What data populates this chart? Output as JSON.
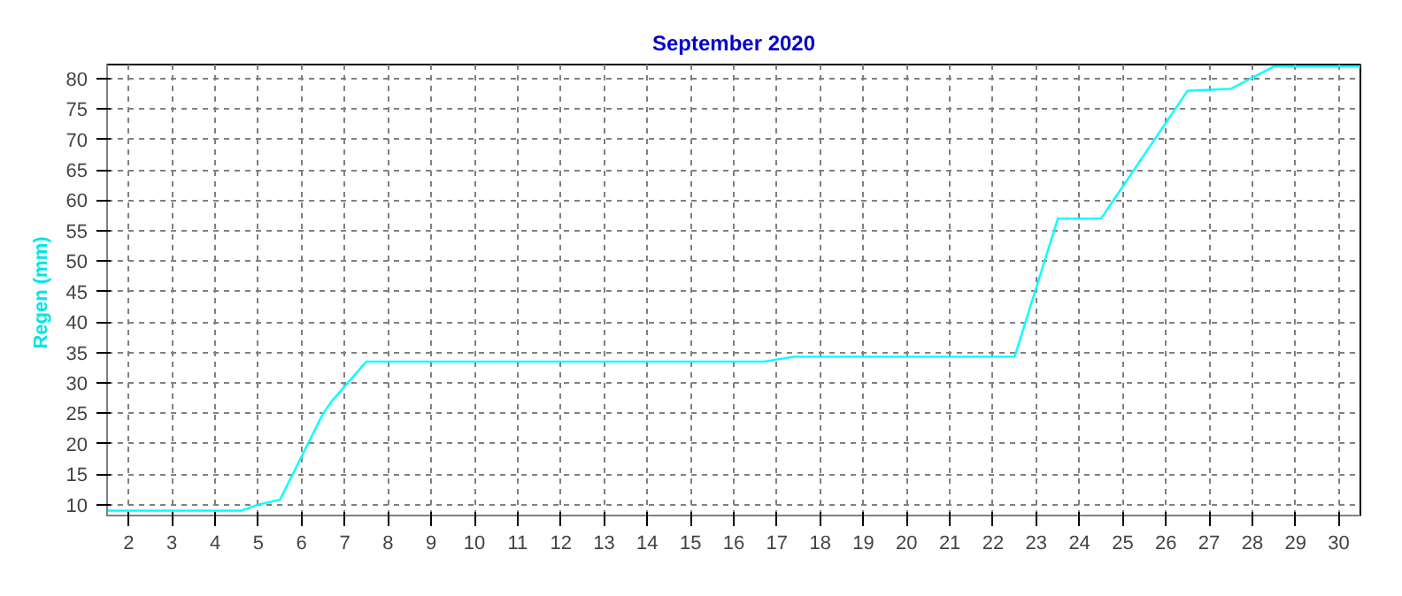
{
  "chart_data": {
    "type": "line",
    "title": "September 2020",
    "ylabel": "Regen  (mm)",
    "x": [
      1.5,
      4.6,
      5.0,
      5.5,
      6.5,
      6.7,
      7.5,
      16.7,
      17.4,
      22.5,
      23.5,
      24.5,
      26.5,
      27.5,
      28.5,
      30.5
    ],
    "series": [
      {
        "color": "#00ffff",
        "values": [
          9,
          9,
          10,
          10.8,
          25,
          27,
          33.5,
          33.5,
          34.3,
          34.3,
          57,
          57,
          78,
          78.3,
          82,
          82
        ]
      }
    ],
    "xlim": [
      1.5,
      30.5
    ],
    "xticks": [
      2,
      3,
      4,
      5,
      6,
      7,
      8,
      9,
      10,
      11,
      12,
      13,
      14,
      15,
      16,
      17,
      18,
      19,
      20,
      21,
      22,
      23,
      24,
      25,
      26,
      27,
      28,
      29,
      30
    ],
    "ylim": [
      8.2,
      82.3
    ],
    "yticks": [
      10,
      15,
      20,
      25,
      30,
      35,
      40,
      45,
      50,
      55,
      60,
      65,
      70,
      75,
      80
    ],
    "grid": true,
    "marker": "none",
    "line_style": "solid"
  }
}
